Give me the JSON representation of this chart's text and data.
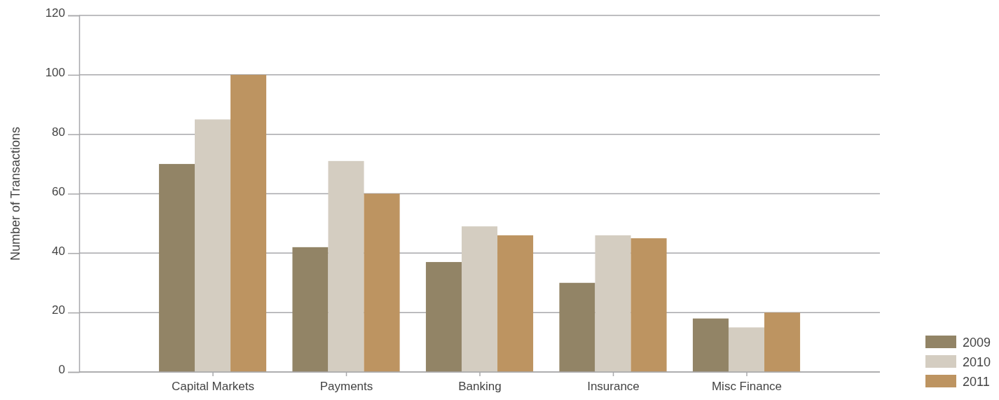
{
  "chart_data": {
    "type": "bar",
    "ylabel": "Number of Transactions",
    "categories": [
      "Capital Markets",
      "Payments",
      "Banking",
      "Insurance",
      "Misc Finance"
    ],
    "series": [
      {
        "name": "2009",
        "color": "#928466",
        "values": [
          70,
          42,
          37,
          30,
          18
        ]
      },
      {
        "name": "2010",
        "color": "#d4cdc1",
        "values": [
          85,
          71,
          49,
          46,
          15
        ]
      },
      {
        "name": "2011",
        "color": "#bd9461",
        "values": [
          100,
          60,
          46,
          45,
          20
        ]
      }
    ],
    "ylim": [
      0,
      120
    ],
    "yticks": [
      0,
      20,
      40,
      60,
      80,
      100,
      120
    ],
    "grid": "y",
    "legend": "bottom right"
  }
}
